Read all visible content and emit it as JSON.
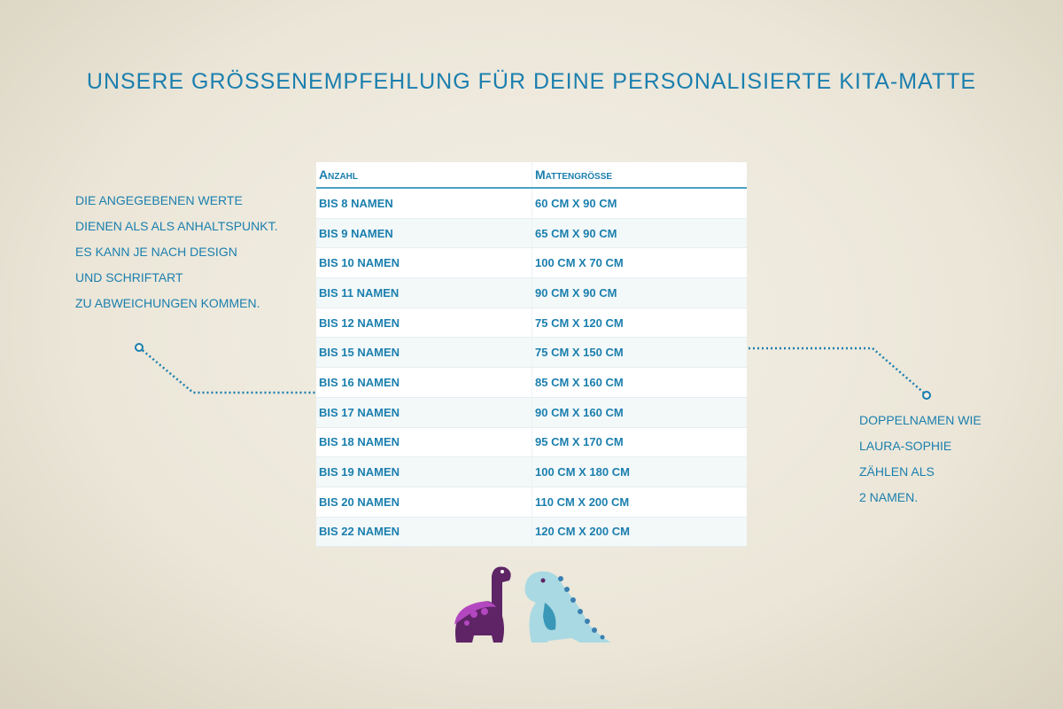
{
  "title": "Unsere Größenempfehlung für deine personalisierte Kita-Matte",
  "note_left": [
    "Die angegebenen Werte",
    "dienen als als Anhaltspunkt.",
    "Es kann je nach Design",
    "und Schriftart",
    "zu Abweichungen kommen."
  ],
  "note_right": [
    "Doppelnamen wie",
    "Laura-Sophie",
    "zählen als",
    "2 Namen."
  ],
  "table": {
    "headers": [
      "Anzahl",
      "Mattengröße"
    ],
    "rows": [
      [
        "bis 8 Namen",
        "60 cm x 90 cm"
      ],
      [
        "bis 9 Namen",
        "65 cm x 90 cm"
      ],
      [
        "bis 10 Namen",
        "100 cm x 70 cm"
      ],
      [
        "bis 11 Namen",
        "90 cm x 90 cm"
      ],
      [
        "bis 12 Namen",
        "75 cm x 120 cm"
      ],
      [
        "bis 15 Namen",
        "75 cm x 150 cm"
      ],
      [
        "bis 16 Namen",
        "85 cm x 160 cm"
      ],
      [
        "bis 17 Namen",
        "90 cm x 160 cm"
      ],
      [
        "bis 18 Namen",
        "95 cm x 170 cm"
      ],
      [
        "bis 19 Namen",
        "100 cm x 180 cm"
      ],
      [
        "bis 20 Namen",
        "110 cm x 200 cm"
      ],
      [
        "bis 22 Namen",
        "120 cm x 200 cm"
      ]
    ]
  },
  "colors": {
    "text": "#1b7fae",
    "purple_dino": "#5e2466",
    "blue_dino": "#a9d9e3"
  },
  "icons": [
    "purple-dinosaur-illustration",
    "blue-dinosaur-illustration"
  ]
}
